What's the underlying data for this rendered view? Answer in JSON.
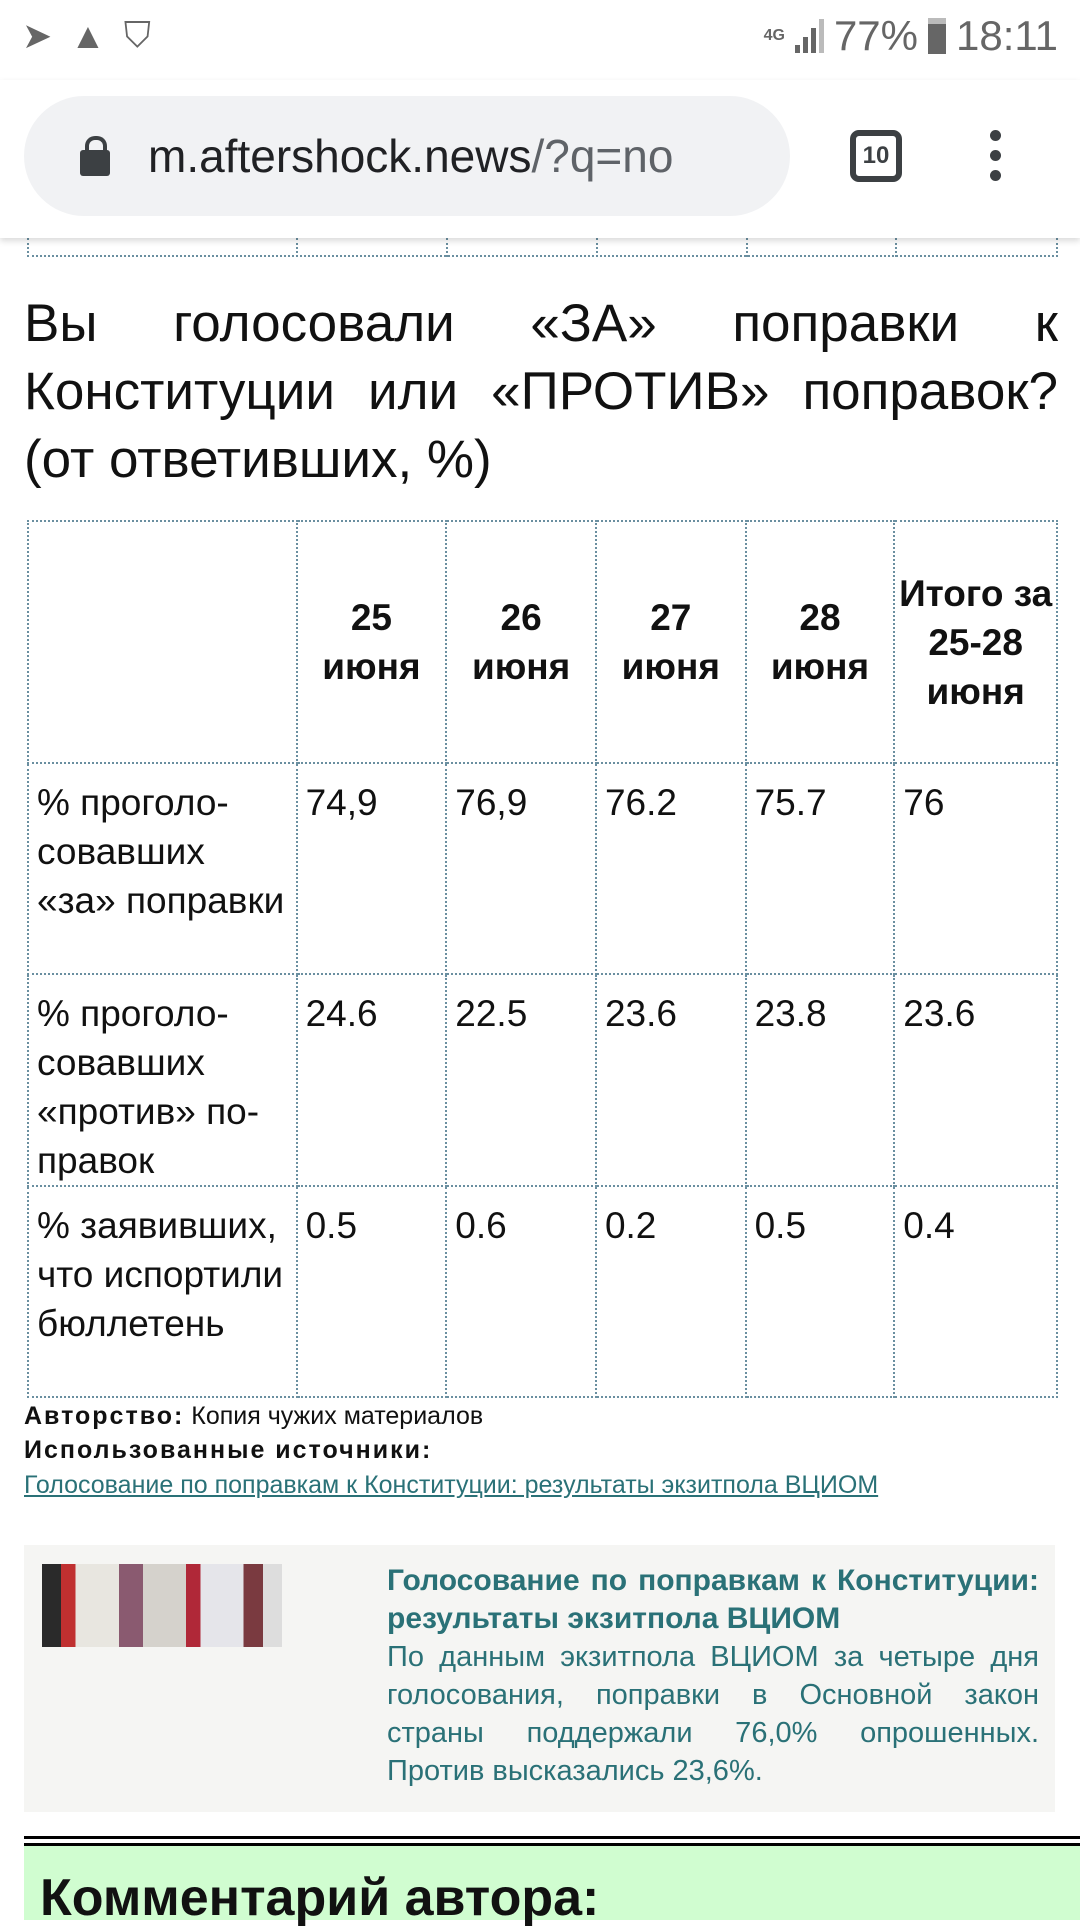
{
  "status_bar": {
    "time": "18:11",
    "battery": "77%",
    "network": "4G",
    "left_icons": [
      "telegram-icon",
      "warning-icon",
      "shield-alert-icon"
    ]
  },
  "browser": {
    "url_host": "m.aftershock.news",
    "url_rest": "/?q=no",
    "tab_count": "10"
  },
  "article": {
    "heading": "Вы голосовали «ЗА» поправки к Конституции или «ПРОТИВ» поправок? (от ответивших, %)",
    "table": {
      "headers": [
        "",
        "25 июня",
        "26 июня",
        "27 июня",
        "28 июня",
        "Итого за 25-28 июня"
      ],
      "rows": [
        [
          "% проголо­совавших «за» поправ­ки",
          "74,9",
          "76,9",
          "76.2",
          "75.7",
          "76"
        ],
        [
          "% проголо­совавших «против» по­правок",
          "24.6",
          "22.5",
          "23.6",
          "23.8",
          "23.6"
        ],
        [
          "% заявив­ших, что ис­портили бюллетень",
          "0.5",
          "0.6",
          "0.2",
          "0.5",
          "0.4"
        ]
      ]
    },
    "authorship_label": "Авторство:",
    "authorship_value": "Копия чужих материалов",
    "sources_label": "Использованные источники:",
    "source_link": "Голосование по поправкам к Конституции: результаты экзитпола ВЦИОМ",
    "card": {
      "title": "Голосование по поправкам к Конститу­ции: результаты экзитпола ВЦИОМ",
      "body": "По данным экзитпола ВЦИОМ за четыре дня голосования, поправки в Основной закон страны поддержали 76,0% опро­шенных. Против высказались 23,6%."
    },
    "comment_heading": "Комментарий автора:"
  },
  "colors": {
    "link": "#2a7177",
    "comment_bg": "#d0fdd0",
    "table_border": "#6a8fa0"
  }
}
